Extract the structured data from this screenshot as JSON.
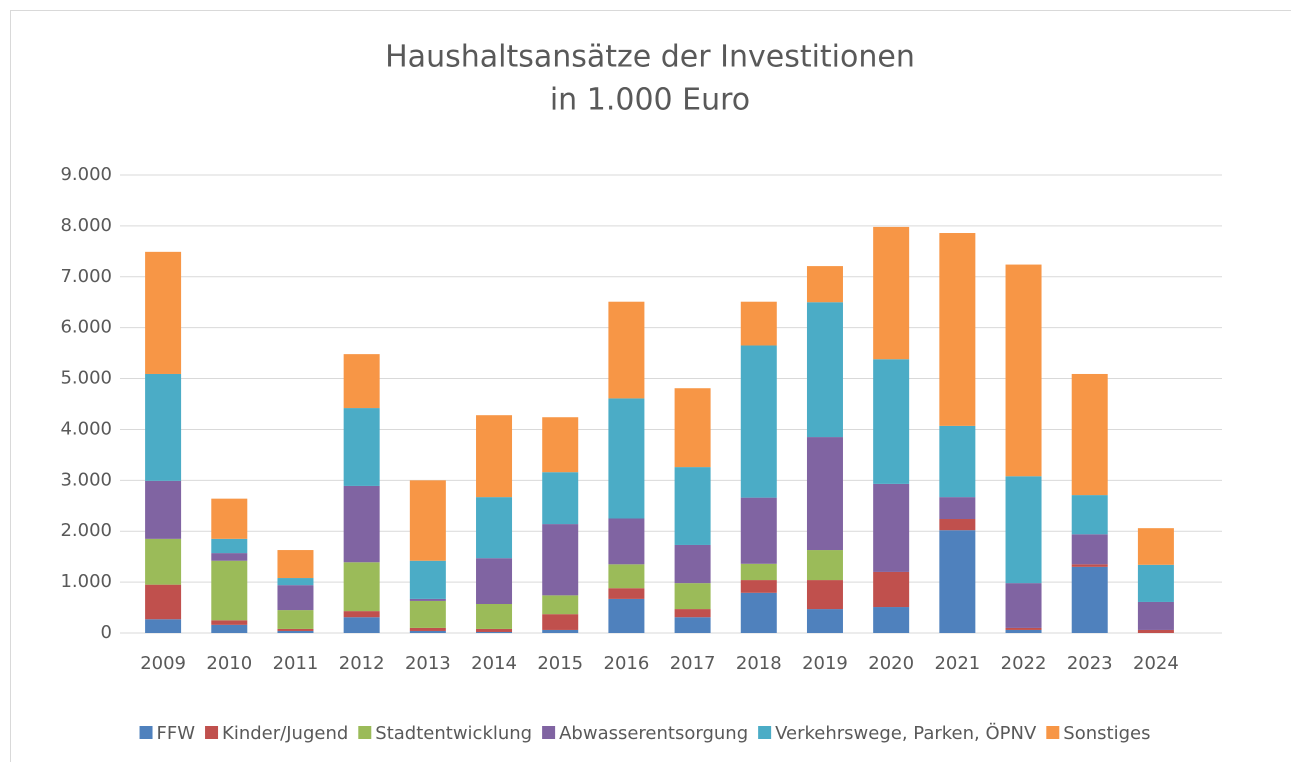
{
  "chart_data": {
    "type": "stacked_bar",
    "title": "Haushaltsansätze der Investitionen",
    "subtitle": "in 1.000 Euro",
    "categories": [
      "2009",
      "2010",
      "2011",
      "2012",
      "2013",
      "2014",
      "2015",
      "2016",
      "2017",
      "2018",
      "2019",
      "2020",
      "2021",
      "2022",
      "2023",
      "2024"
    ],
    "series": [
      {
        "name": "FFW",
        "color": "#4f81bd",
        "values": [
          270,
          160,
          40,
          310,
          40,
          20,
          60,
          670,
          310,
          790,
          470,
          510,
          2020,
          60,
          1300,
          0
        ]
      },
      {
        "name": "Kinder/Jugend",
        "color": "#c0504d",
        "values": [
          680,
          90,
          40,
          120,
          60,
          60,
          310,
          210,
          160,
          250,
          570,
          690,
          220,
          40,
          50,
          60
        ]
      },
      {
        "name": "Stadtentwicklung",
        "color": "#9bbb59",
        "values": [
          900,
          1170,
          370,
          960,
          530,
          490,
          370,
          470,
          510,
          320,
          590,
          0,
          0,
          0,
          0,
          0
        ]
      },
      {
        "name": "Abwasserentsorgung",
        "color": "#8064a2",
        "values": [
          1140,
          150,
          490,
          1500,
          40,
          900,
          1400,
          900,
          750,
          1300,
          2220,
          1730,
          430,
          880,
          590,
          550
        ]
      },
      {
        "name": "Verkehrswege, Parken, ÖPNV",
        "color": "#4bacc6",
        "values": [
          2100,
          280,
          140,
          1530,
          750,
          1200,
          1020,
          2360,
          1530,
          2990,
          2650,
          2450,
          1400,
          2100,
          770,
          730
        ]
      },
      {
        "name": "Sonstiges",
        "color": "#f79646",
        "values": [
          2400,
          790,
          550,
          1060,
          1580,
          1610,
          1080,
          1900,
          1550,
          860,
          710,
          2600,
          3790,
          4160,
          2380,
          720
        ]
      }
    ],
    "ylim": [
      0,
      9000
    ],
    "yticks": [
      0,
      {
        "value": 1000,
        "label": "1.000"
      },
      {
        "value": 2000,
        "label": "2.000"
      },
      {
        "value": 3000,
        "label": "3.000"
      },
      {
        "value": 4000,
        "label": "4.000"
      },
      {
        "value": 5000,
        "label": "5.000"
      },
      {
        "value": 6000,
        "label": "6.000"
      },
      {
        "value": 7000,
        "label": "7.000"
      },
      {
        "value": 8000,
        "label": "8.000"
      },
      {
        "value": 9000,
        "label": "9.000"
      }
    ],
    "grid": true,
    "legend": "bottom"
  }
}
